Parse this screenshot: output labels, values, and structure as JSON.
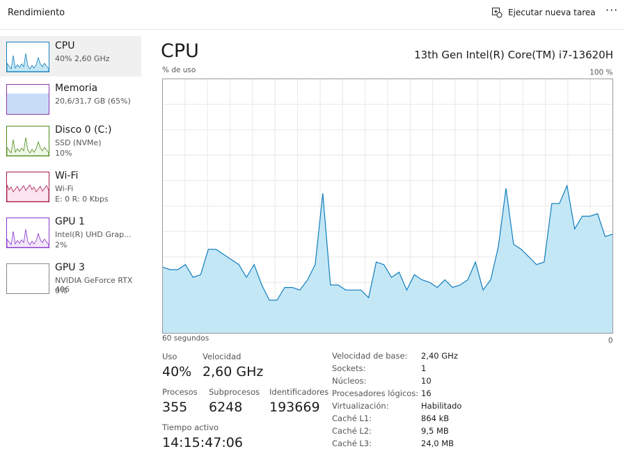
{
  "header": {
    "title": "Rendimiento",
    "action": "Ejecutar nueva tarea"
  },
  "sidebar": [
    {
      "name": "CPU",
      "lines": [
        "40%  2,60 GHz"
      ]
    },
    {
      "name": "Memoria",
      "lines": [
        "20,6/31,7 GB (65%)"
      ]
    },
    {
      "name": "Disco 0 (C:)",
      "lines": [
        "SSD (NVMe)",
        "10%"
      ]
    },
    {
      "name": "Wi-Fi",
      "lines": [
        "Wi-Fi",
        "E: 0 R: 0 Kbps"
      ]
    },
    {
      "name": "GPU 1",
      "lines": [
        "Intel(R) UHD Grap...",
        "2%"
      ]
    },
    {
      "name": "GPU 3",
      "lines": [
        "NVIDIA GeForce RTX 406",
        "0%"
      ]
    }
  ],
  "main": {
    "title": "CPU",
    "processor": "13th Gen Intel(R) Core(TM) i7-13620H"
  },
  "chart_data": {
    "type": "area",
    "y_label": "% de uso",
    "x_start_label": "60 segundos",
    "ylim": [
      0,
      100
    ],
    "yticks": [
      0,
      {
        "value": 100,
        "label": "100 %"
      }
    ],
    "color": "#117dbb",
    "fill": "#c4e7f6",
    "values": [
      26,
      25,
      25,
      27,
      22,
      23,
      33,
      33,
      31,
      29,
      27,
      22,
      27,
      19,
      13,
      13,
      18,
      18,
      17,
      21,
      27,
      55,
      19,
      19,
      17,
      17,
      17,
      14,
      28,
      27,
      22,
      24,
      17,
      23,
      21,
      20,
      18,
      21,
      18,
      19,
      21,
      28,
      17,
      21,
      34,
      57,
      35,
      33,
      30,
      27,
      28,
      51,
      51,
      58,
      41,
      46,
      46,
      47,
      38,
      39
    ]
  },
  "stats": [
    {
      "label": "Uso",
      "value": "40%"
    },
    {
      "label": "Velocidad",
      "value": "2,60 GHz"
    },
    {
      "label": "Procesos",
      "value": "355"
    },
    {
      "label": "Subprocesos",
      "value": "6248"
    },
    {
      "label": "Identificadores",
      "value": "193669"
    },
    {
      "label": "Tiempo activo",
      "value": "14:15:47:06"
    }
  ],
  "specs": [
    [
      "Velocidad de base:",
      "2,40 GHz"
    ],
    [
      "Sockets:",
      "1"
    ],
    [
      "Núcleos:",
      "10"
    ],
    [
      "Procesadores lógicos:",
      "16"
    ],
    [
      "Virtualización:",
      "Habilitado"
    ],
    [
      "Caché L1:",
      "864 kB"
    ],
    [
      "Caché L2:",
      "9,5 MB"
    ],
    [
      "Caché L3:",
      "24,0 MB"
    ]
  ]
}
